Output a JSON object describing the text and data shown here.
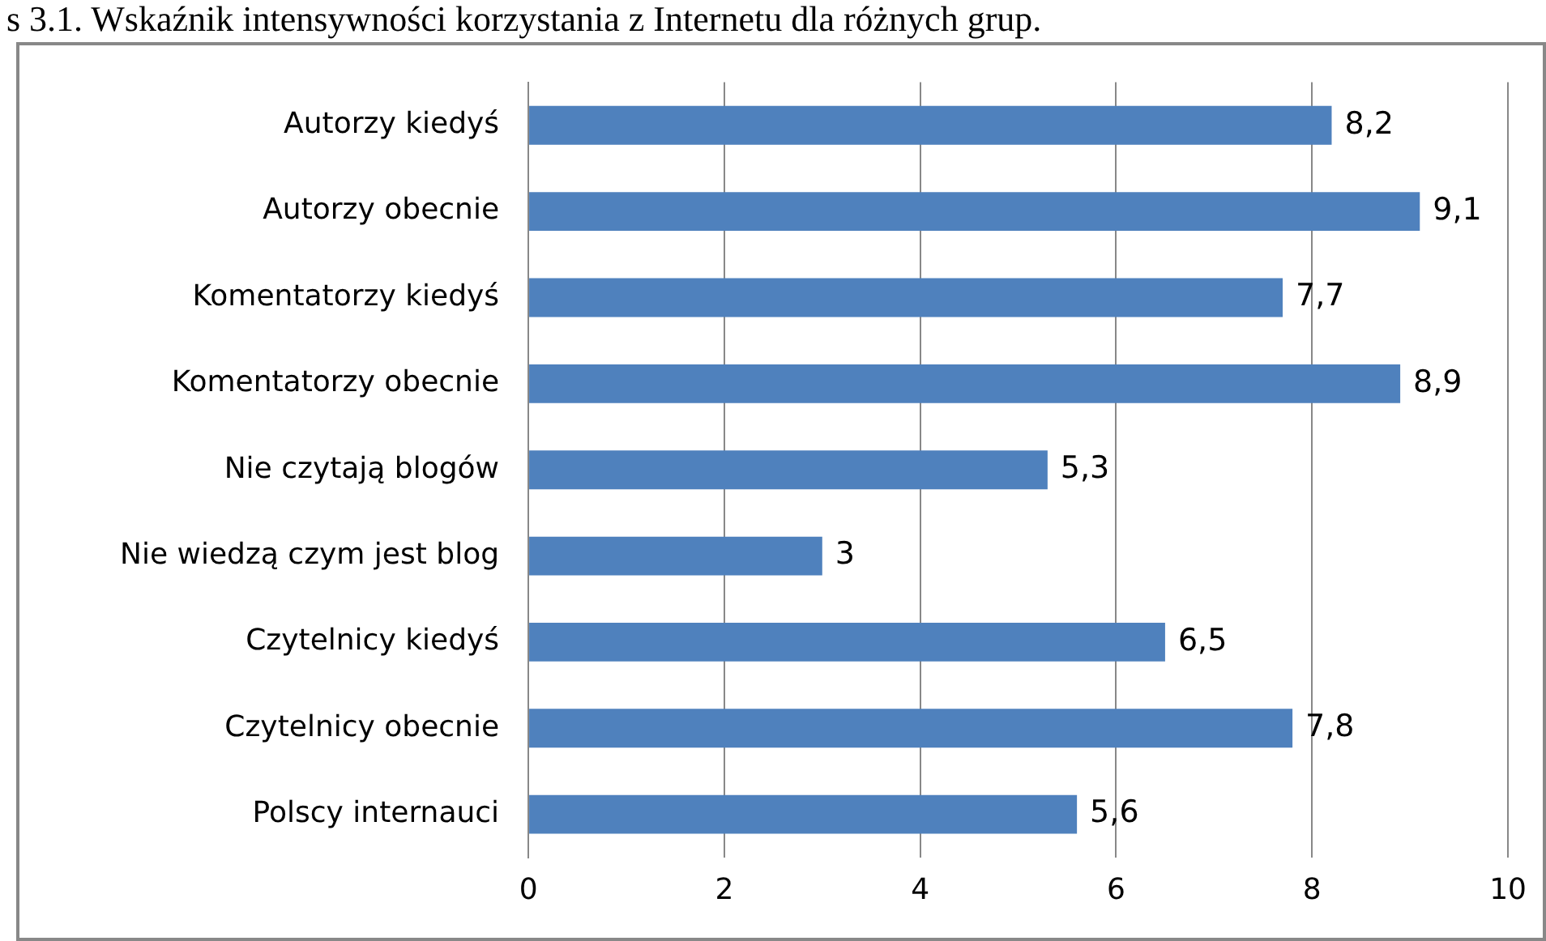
{
  "chart_data": {
    "type": "bar",
    "orientation": "horizontal",
    "title": "s 3.1. Wskaźnik intensywności korzystania z Internetu dla różnych grup.",
    "categories": [
      "Autorzy kiedyś",
      "Autorzy obecnie",
      "Komentatorzy kiedyś",
      "Komentatorzy obecnie",
      "Nie czytają blogów",
      "Nie wiedzą czym jest blog",
      "Czytelnicy kiedyś",
      "Czytelnicy obecnie",
      "Polscy internauci"
    ],
    "values": [
      8.2,
      9.1,
      7.7,
      8.9,
      5.3,
      3,
      6.5,
      7.8,
      5.6
    ],
    "value_labels": [
      "8,2",
      "9,1",
      "7,7",
      "8,9",
      "5,3",
      "3",
      "6,5",
      "7,8",
      "5,6"
    ],
    "color": "#4f81bd",
    "xlim": [
      0,
      10
    ],
    "xticks": [
      0,
      2,
      4,
      6,
      8,
      10
    ],
    "grid": "x"
  }
}
